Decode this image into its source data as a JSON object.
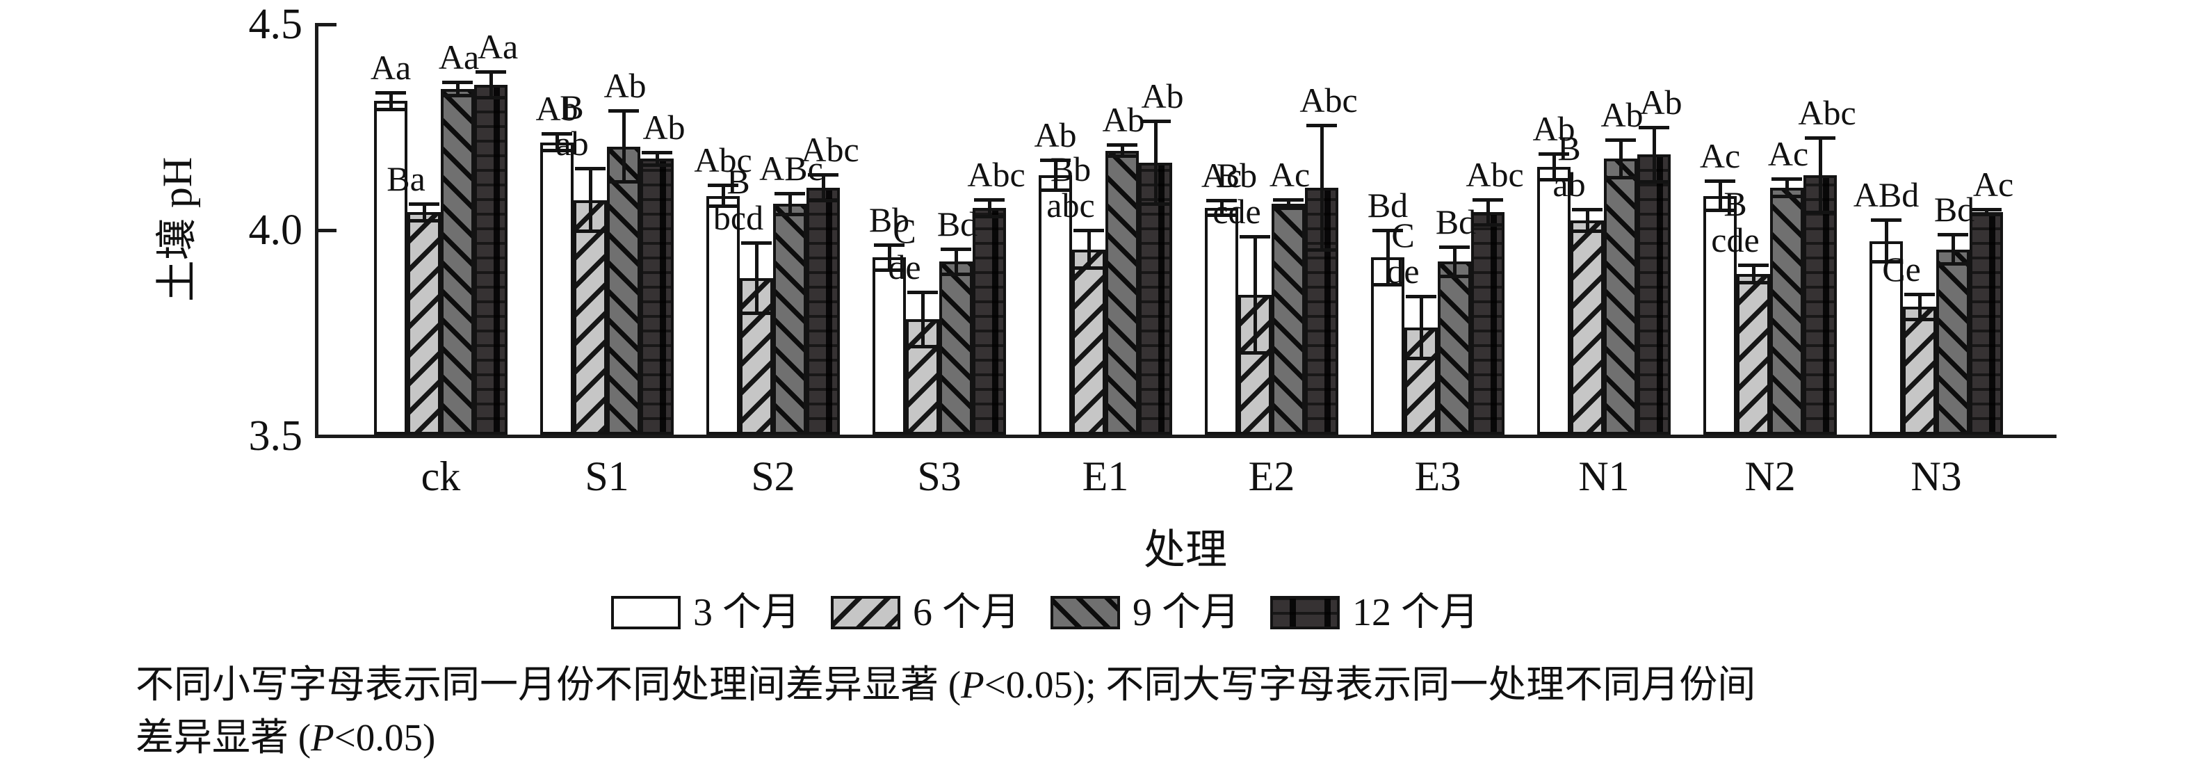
{
  "chart_data": {
    "type": "bar",
    "title": "",
    "ylabel": "土壤 pH",
    "xlabel": "处理",
    "ylim": [
      3.5,
      4.5
    ],
    "yticks": [
      4.5,
      4.0,
      3.5
    ],
    "grid": false,
    "legend_position": "bottom-center",
    "categories": [
      "ck",
      "S1",
      "S2",
      "S3",
      "E1",
      "E2",
      "E3",
      "N1",
      "N2",
      "N3"
    ],
    "series": [
      {
        "name": "3 个月",
        "pattern": "plain",
        "values": [
          4.31,
          4.21,
          4.08,
          3.93,
          4.13,
          4.05,
          3.93,
          4.15,
          4.08,
          3.97
        ],
        "errors": [
          0.025,
          0.025,
          0.03,
          0.035,
          0.04,
          0.022,
          0.07,
          0.035,
          0.04,
          0.055
        ],
        "letters": [
          "Aa",
          "Ab",
          "Abc",
          "Bb",
          "Ab",
          "Ac",
          "Bd",
          "Ab",
          "Ac",
          "ABd"
        ]
      },
      {
        "name": "6 个月",
        "pattern": "hatch-forward",
        "values": [
          4.04,
          4.07,
          3.88,
          3.78,
          3.95,
          3.84,
          3.76,
          4.02,
          3.89,
          3.81
        ],
        "errors": [
          0.025,
          0.08,
          0.09,
          0.07,
          0.05,
          0.145,
          0.08,
          0.03,
          0.025,
          0.035
        ],
        "letters": [
          "Ba",
          "B\nab",
          "B\nbcd",
          "C\nde",
          "Bb\nabc",
          "Bb\ncde",
          "C\nde",
          "B\nab",
          "B\ncde",
          "Ce"
        ]
      },
      {
        "name": "9 个月",
        "pattern": "hatch-back",
        "values": [
          4.34,
          4.2,
          4.06,
          3.92,
          4.19,
          4.06,
          3.92,
          4.17,
          4.1,
          3.95
        ],
        "errors": [
          0.02,
          0.09,
          0.03,
          0.035,
          0.017,
          0.015,
          0.04,
          0.05,
          0.025,
          0.04
        ],
        "letters": [
          "Aa",
          "Ab",
          "ABc",
          "Bd",
          "Ab",
          "Ac",
          "Bd",
          "Ab",
          "Ac",
          "Bd"
        ]
      },
      {
        "name": "12 个月",
        "pattern": "dark-speckle",
        "values": [
          4.35,
          4.17,
          4.1,
          4.05,
          4.16,
          4.1,
          4.04,
          4.18,
          4.13,
          4.04
        ],
        "errors": [
          0.035,
          0.02,
          0.035,
          0.025,
          0.105,
          0.155,
          0.035,
          0.07,
          0.095,
          0.01
        ],
        "letters": [
          "Aa",
          "Ab",
          "Abc",
          "Abc",
          "Ab",
          "Abc",
          "Abc",
          "Ab",
          "Abc",
          "Ac"
        ]
      }
    ]
  },
  "legend": {
    "items": [
      {
        "label": "3 个月",
        "pattern": "plain"
      },
      {
        "label": "6 个月",
        "pattern": "hatch-forward"
      },
      {
        "label": "9 个月",
        "pattern": "hatch-back"
      },
      {
        "label": "12 个月",
        "pattern": "dark-speckle"
      }
    ]
  },
  "caption": {
    "line1": "不同小写字母表示同一月份不同处理间差异显著 (P<0.05); 不同大写字母表示同一处理不同月份间",
    "line2": "差异显著 (P<0.05)"
  },
  "colors": {
    "axis_and_text": "#111111",
    "bar_outline": "#131313",
    "series_fills": [
      "#ffffff",
      "#c6c6c6",
      "#707070",
      "#363233"
    ]
  }
}
